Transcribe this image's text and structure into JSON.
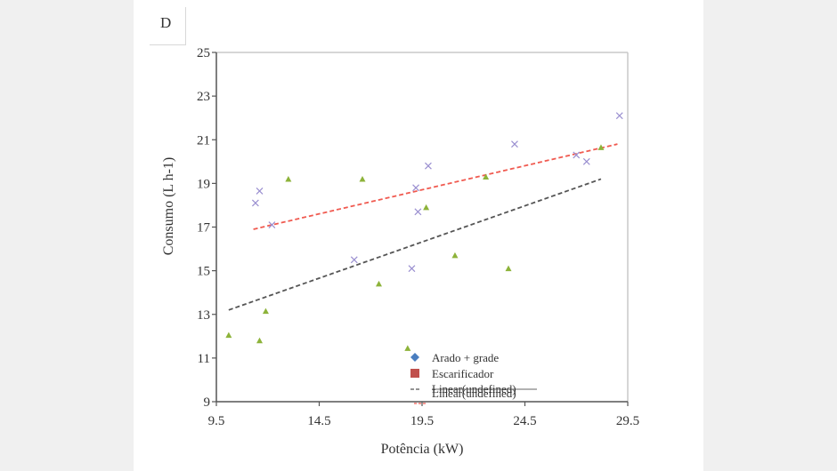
{
  "panel_label": "D",
  "chart_data": {
    "type": "scatter",
    "title": "",
    "xlabel": "Potência (kW)",
    "ylabel": "Consumo (L h-1)",
    "xlim": [
      9.5,
      29.5
    ],
    "ylim": [
      9,
      25
    ],
    "x_ticks": [
      "9.5",
      "14.5",
      "19.5",
      "24.5",
      "29.5"
    ],
    "y_ticks": [
      "9",
      "11",
      "13",
      "15",
      "17",
      "19",
      "21",
      "23",
      "25"
    ],
    "grid": false,
    "legend_position": "inside-bottom-center",
    "legend": [
      {
        "label": "Arado + grade",
        "marker": "diamond",
        "color": "#4a7ebf"
      },
      {
        "label": "Escarificador",
        "marker": "square",
        "color": "#c0504d"
      },
      {
        "label": "Linear(undefined)",
        "marker": "dashed-line",
        "color": "#555555"
      },
      {
        "label": "Linear(undefined)",
        "marker": "dashed-line",
        "color": "#555555"
      }
    ],
    "series": [
      {
        "name": "Escarificador (x markers)",
        "marker": "x",
        "color": "#9a8fd0",
        "points": [
          [
            11.6,
            18.65
          ],
          [
            11.4,
            18.1
          ],
          [
            12.2,
            17.1
          ],
          [
            16.2,
            15.5
          ],
          [
            19.0,
            15.1
          ],
          [
            19.2,
            18.8
          ],
          [
            19.3,
            17.7
          ],
          [
            19.8,
            19.8
          ],
          [
            24.0,
            20.8
          ],
          [
            27.0,
            20.3
          ],
          [
            27.5,
            20.0
          ],
          [
            29.1,
            22.1
          ]
        ]
      },
      {
        "name": "Arado + grade (triangle markers)",
        "marker": "triangle",
        "color": "#8db33a",
        "points": [
          [
            10.1,
            12.05
          ],
          [
            11.6,
            11.8
          ],
          [
            11.9,
            13.15
          ],
          [
            13.0,
            19.2
          ],
          [
            16.6,
            19.2
          ],
          [
            17.4,
            14.4
          ],
          [
            18.8,
            11.45
          ],
          [
            19.7,
            17.9
          ],
          [
            21.1,
            15.7
          ],
          [
            22.6,
            19.3
          ],
          [
            23.7,
            15.1
          ],
          [
            28.2,
            20.65
          ]
        ]
      }
    ],
    "trendlines": [
      {
        "name": "Linear (black)",
        "color": "#555555",
        "style": "dashed",
        "from": [
          10.1,
          13.2
        ],
        "to": [
          28.2,
          19.2
        ]
      },
      {
        "name": "Linear (red)",
        "color": "#f05a50",
        "style": "dashed",
        "from": [
          11.3,
          16.9
        ],
        "to": [
          29.0,
          20.8
        ]
      }
    ]
  }
}
